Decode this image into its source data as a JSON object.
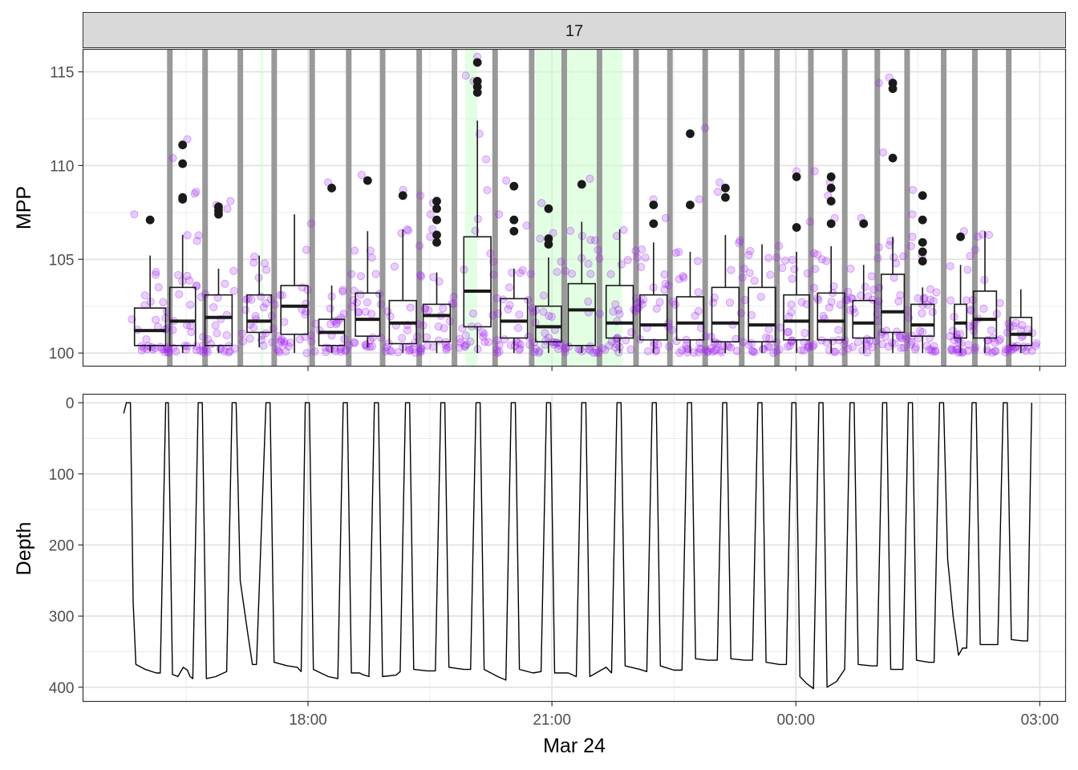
{
  "chart_data": [
    {
      "panel": "top",
      "type": "box",
      "facet_label": "17",
      "ylabel": "MPP",
      "ylim": [
        99.3,
        116.2
      ],
      "y_ticks": [
        100,
        105,
        110,
        115
      ],
      "time_start": "Mar 23 15:30",
      "time_end": "Mar 24 02:54",
      "x_ticks": [
        "18:00",
        "21:00",
        "00:00",
        "03:00"
      ],
      "xlabel": "Mar 24",
      "colors": {
        "points": "#a020f0",
        "box": "#1a1a1a",
        "surface": "#999999",
        "highlight": "#ccffcc",
        "strip": "#d9d9d9"
      },
      "boxes": [
        {
          "start": "15:52",
          "end": "16:15",
          "q1": 100.4,
          "median": 101.2,
          "q3": 102.4,
          "low": 100.1,
          "high": 105.2,
          "outliers": [
            107.1
          ]
        },
        {
          "start": "16:18",
          "end": "16:37",
          "q1": 100.4,
          "median": 101.7,
          "q3": 103.5,
          "low": 100.0,
          "high": 106.3,
          "outliers": [
            108.2,
            108.3,
            110.1,
            111.1
          ]
        },
        {
          "start": "16:44",
          "end": "17:04",
          "q1": 100.4,
          "median": 101.9,
          "q3": 103.1,
          "low": 100.0,
          "high": 104.5,
          "outliers": [
            107.4,
            107.6,
            107.8
          ]
        },
        {
          "start": "17:15",
          "end": "17:33",
          "q1": 101.1,
          "median": 101.7,
          "q3": 103.1,
          "low": 100.3,
          "high": 105.2,
          "outliers": []
        },
        {
          "start": "17:40",
          "end": "18:00",
          "q1": 101.0,
          "median": 102.5,
          "q3": 103.6,
          "low": 100.0,
          "high": 107.4,
          "outliers": []
        },
        {
          "start": "18:08",
          "end": "18:27",
          "q1": 100.4,
          "median": 101.1,
          "q3": 101.8,
          "low": 100.0,
          "high": 103.6,
          "outliers": [
            108.8
          ]
        },
        {
          "start": "18:35",
          "end": "18:53",
          "q1": 100.9,
          "median": 101.8,
          "q3": 103.2,
          "low": 100.3,
          "high": 106.5,
          "outliers": [
            109.2
          ]
        },
        {
          "start": "19:00",
          "end": "19:20",
          "q1": 100.5,
          "median": 101.6,
          "q3": 102.8,
          "low": 100.0,
          "high": 106.6,
          "outliers": [
            108.4
          ]
        },
        {
          "start": "19:25",
          "end": "19:45",
          "q1": 100.6,
          "median": 102.0,
          "q3": 102.6,
          "low": 100.0,
          "high": 104.3,
          "outliers": [
            105.9,
            106.3,
            107.1,
            107.7,
            108.1
          ]
        },
        {
          "start": "19:55",
          "end": "20:15",
          "q1": 101.4,
          "median": 103.3,
          "q3": 106.2,
          "low": 100.0,
          "high": 112.4,
          "outliers": [
            113.9,
            114.2,
            114.5,
            115.5
          ]
        },
        {
          "start": "20:22",
          "end": "20:42",
          "q1": 100.8,
          "median": 101.7,
          "q3": 102.9,
          "low": 100.0,
          "high": 104.5,
          "outliers": [
            106.5,
            107.1,
            108.9
          ]
        },
        {
          "start": "20:48",
          "end": "21:07",
          "q1": 100.6,
          "median": 101.4,
          "q3": 102.5,
          "low": 100.0,
          "high": 105.1,
          "outliers": [
            105.8,
            106.1,
            107.7
          ]
        },
        {
          "start": "21:12",
          "end": "21:32",
          "q1": 100.4,
          "median": 102.3,
          "q3": 103.7,
          "low": 100.0,
          "high": 107.0,
          "outliers": [
            109.0
          ]
        },
        {
          "start": "21:40",
          "end": "22:00",
          "q1": 100.8,
          "median": 101.6,
          "q3": 103.6,
          "low": 100.0,
          "high": 106.6,
          "outliers": []
        },
        {
          "start": "22:05",
          "end": "22:25",
          "q1": 100.7,
          "median": 101.5,
          "q3": 103.1,
          "low": 100.0,
          "high": 105.9,
          "outliers": [
            106.9,
            107.9
          ]
        },
        {
          "start": "22:32",
          "end": "22:52",
          "q1": 100.7,
          "median": 101.6,
          "q3": 103.0,
          "low": 100.0,
          "high": 105.4,
          "outliers": [
            107.9,
            111.7
          ]
        },
        {
          "start": "22:58",
          "end": "23:18",
          "q1": 100.6,
          "median": 101.6,
          "q3": 103.5,
          "low": 100.0,
          "high": 106.3,
          "outliers": [
            108.3,
            108.8
          ]
        },
        {
          "start": "23:25",
          "end": "23:45",
          "q1": 100.6,
          "median": 101.5,
          "q3": 103.5,
          "low": 100.0,
          "high": 105.8,
          "outliers": []
        },
        {
          "start": "23:51",
          "end": "00:10",
          "q1": 100.7,
          "median": 101.7,
          "q3": 103.1,
          "low": 100.0,
          "high": 105.4,
          "outliers": [
            106.7,
            109.4
          ]
        },
        {
          "start": "00:16",
          "end": "00:36",
          "q1": 100.7,
          "median": 101.7,
          "q3": 103.2,
          "low": 100.0,
          "high": 105.7,
          "outliers": [
            106.9,
            108.1,
            108.8,
            109.4
          ]
        },
        {
          "start": "00:42",
          "end": "00:58",
          "q1": 100.8,
          "median": 101.6,
          "q3": 102.8,
          "low": 100.0,
          "high": 104.7,
          "outliers": [
            106.9
          ]
        },
        {
          "start": "01:03",
          "end": "01:20",
          "q1": 101.1,
          "median": 102.2,
          "q3": 104.2,
          "low": 100.0,
          "high": 106.2,
          "outliers": [
            110.4,
            114.1,
            114.4
          ]
        },
        {
          "start": "01:25",
          "end": "01:42",
          "q1": 100.9,
          "median": 101.5,
          "q3": 102.6,
          "low": 100.0,
          "high": 103.5,
          "outliers": [
            104.9,
            105.4,
            105.9,
            107.1,
            108.4
          ]
        },
        {
          "start": "01:57",
          "end": "02:06",
          "q1": 100.8,
          "median": 101.6,
          "q3": 102.6,
          "low": 100.0,
          "high": 104.7,
          "outliers": [
            106.2
          ]
        },
        {
          "start": "02:11",
          "end": "02:28",
          "q1": 100.8,
          "median": 101.8,
          "q3": 103.3,
          "low": 100.0,
          "high": 106.5,
          "outliers": []
        },
        {
          "start": "02:38",
          "end": "02:54",
          "q1": 100.4,
          "median": 101.0,
          "q3": 101.9,
          "low": 100.0,
          "high": 103.4,
          "outliers": []
        }
      ],
      "surface_intervals": [
        [
          "16:16",
          "16:20"
        ],
        [
          "16:42",
          "16:46"
        ],
        [
          "17:08",
          "17:12"
        ],
        [
          "17:33",
          "17:37"
        ],
        [
          "18:01",
          "18:05"
        ],
        [
          "18:28",
          "18:32"
        ],
        [
          "18:53",
          "18:57"
        ],
        [
          "19:20",
          "19:24"
        ],
        [
          "19:46",
          "19:50"
        ],
        [
          "20:16",
          "20:20"
        ],
        [
          "20:43",
          "20:47"
        ],
        [
          "21:07",
          "21:11"
        ],
        [
          "21:33",
          "21:37"
        ],
        [
          "22:00",
          "22:04"
        ],
        [
          "22:25",
          "22:29"
        ],
        [
          "22:51",
          "22:55"
        ],
        [
          "23:18",
          "23:22"
        ],
        [
          "23:44",
          "23:48"
        ],
        [
          "00:09",
          "00:13"
        ],
        [
          "00:34",
          "00:38"
        ],
        [
          "00:58",
          "01:02"
        ],
        [
          "01:20",
          "01:24"
        ],
        [
          "01:47",
          "01:51"
        ],
        [
          "02:10",
          "02:14"
        ],
        [
          "02:35",
          "02:39"
        ]
      ],
      "highlight_intervals": [
        [
          "17:25",
          "17:27"
        ],
        [
          "19:56",
          "20:05"
        ],
        [
          "20:48",
          "21:52"
        ]
      ]
    },
    {
      "panel": "bottom",
      "type": "line",
      "ylabel": "Depth",
      "ylim": [
        0,
        400
      ],
      "y_reversed": true,
      "y_ticks": [
        0,
        100,
        200,
        300,
        400
      ],
      "series": [
        {
          "points": [
            [
              "15:44",
              15
            ],
            [
              "15:46",
              0
            ],
            [
              "15:49",
              0
            ],
            [
              "15:51",
              280
            ],
            [
              "15:53",
              368
            ],
            [
              "16:00",
              375
            ],
            [
              "16:08",
              380
            ],
            [
              "16:11",
              380
            ],
            [
              "16:15",
              0
            ],
            [
              "16:17",
              0
            ],
            [
              "16:20",
              382
            ],
            [
              "16:24",
              385
            ],
            [
              "16:28",
              372
            ],
            [
              "16:31",
              376
            ],
            [
              "16:33",
              385
            ],
            [
              "16:35",
              388
            ],
            [
              "16:39",
              0
            ],
            [
              "16:42",
              0
            ],
            [
              "16:45",
              388
            ],
            [
              "16:52",
              385
            ],
            [
              "17:00",
              378
            ],
            [
              "17:04",
              0
            ],
            [
              "17:07",
              0
            ],
            [
              "17:10",
              250
            ],
            [
              "17:16",
              330
            ],
            [
              "17:19",
              368
            ],
            [
              "17:22",
              368
            ],
            [
              "17:29",
              0
            ],
            [
              "17:32",
              0
            ],
            [
              "17:35",
              365
            ],
            [
              "17:45",
              370
            ],
            [
              "17:52",
              372
            ],
            [
              "17:55",
              378
            ],
            [
              "17:58",
              0
            ],
            [
              "18:01",
              0
            ],
            [
              "18:04",
              375
            ],
            [
              "18:15",
              385
            ],
            [
              "18:22",
              388
            ],
            [
              "18:26",
              0
            ],
            [
              "18:29",
              0
            ],
            [
              "18:32",
              380
            ],
            [
              "18:38",
              380
            ],
            [
              "18:40",
              382
            ],
            [
              "18:45",
              385
            ],
            [
              "18:49",
              0
            ],
            [
              "18:52",
              0
            ],
            [
              "18:55",
              385
            ],
            [
              "19:05",
              383
            ],
            [
              "19:08",
              378
            ],
            [
              "19:12",
              0
            ],
            [
              "19:15",
              0
            ],
            [
              "19:18",
              375
            ],
            [
              "19:28",
              377
            ],
            [
              "19:34",
              377
            ],
            [
              "19:38",
              0
            ],
            [
              "19:41",
              0
            ],
            [
              "19:44",
              372
            ],
            [
              "19:55",
              375
            ],
            [
              "20:00",
              375
            ],
            [
              "20:04",
              0
            ],
            [
              "20:07",
              0
            ],
            [
              "20:10",
              375
            ],
            [
              "20:20",
              385
            ],
            [
              "20:26",
              390
            ],
            [
              "20:30",
              0
            ],
            [
              "20:33",
              0
            ],
            [
              "20:36",
              375
            ],
            [
              "20:46",
              380
            ],
            [
              "20:52",
              378
            ],
            [
              "20:56",
              0
            ],
            [
              "20:59",
              0
            ],
            [
              "21:02",
              380
            ],
            [
              "21:12",
              380
            ],
            [
              "21:18",
              385
            ],
            [
              "21:22",
              0
            ],
            [
              "21:25",
              0
            ],
            [
              "21:28",
              385
            ],
            [
              "21:40",
              372
            ],
            [
              "21:44",
              380
            ],
            [
              "21:48",
              0
            ],
            [
              "21:51",
              0
            ],
            [
              "21:54",
              370
            ],
            [
              "22:05",
              375
            ],
            [
              "22:10",
              378
            ],
            [
              "22:14",
              0
            ],
            [
              "22:17",
              0
            ],
            [
              "22:20",
              370
            ],
            [
              "22:30",
              376
            ],
            [
              "22:36",
              376
            ],
            [
              "22:40",
              0
            ],
            [
              "22:43",
              0
            ],
            [
              "22:46",
              360
            ],
            [
              "22:55",
              362
            ],
            [
              "23:02",
              362
            ],
            [
              "23:06",
              0
            ],
            [
              "23:09",
              0
            ],
            [
              "23:12",
              360
            ],
            [
              "23:22",
              362
            ],
            [
              "23:28",
              362
            ],
            [
              "23:32",
              0
            ],
            [
              "23:35",
              0
            ],
            [
              "23:38",
              365
            ],
            [
              "23:48",
              368
            ],
            [
              "23:53",
              368
            ],
            [
              "23:57",
              0
            ],
            [
              "00:00",
              0
            ],
            [
              "00:03",
              385
            ],
            [
              "00:08",
              395
            ],
            [
              "00:13",
              402
            ],
            [
              "00:17",
              0
            ],
            [
              "00:20",
              0
            ],
            [
              "00:23",
              400
            ],
            [
              "00:30",
              392
            ],
            [
              "00:36",
              375
            ],
            [
              "00:40",
              0
            ],
            [
              "00:43",
              0
            ],
            [
              "00:46",
              368
            ],
            [
              "00:56",
              370
            ],
            [
              "01:00",
              370
            ],
            [
              "01:04",
              0
            ],
            [
              "01:07",
              0
            ],
            [
              "01:10",
              375
            ],
            [
              "01:19",
              375
            ],
            [
              "01:23",
              0
            ],
            [
              "01:26",
              0
            ],
            [
              "01:29",
              362
            ],
            [
              "01:38",
              365
            ],
            [
              "01:42",
              365
            ],
            [
              "01:46",
              0
            ],
            [
              "01:49",
              0
            ],
            [
              "01:52",
              220
            ],
            [
              "01:56",
              300
            ],
            [
              "02:00",
              355
            ],
            [
              "02:03",
              345
            ],
            [
              "02:06",
              345
            ],
            [
              "02:10",
              0
            ],
            [
              "02:13",
              0
            ],
            [
              "02:16",
              340
            ],
            [
              "02:25",
              340
            ],
            [
              "02:29",
              340
            ],
            [
              "02:33",
              0
            ],
            [
              "02:36",
              0
            ],
            [
              "02:39",
              333
            ],
            [
              "02:48",
              335
            ],
            [
              "02:51",
              335
            ],
            [
              "02:54",
              0
            ]
          ]
        }
      ]
    }
  ]
}
